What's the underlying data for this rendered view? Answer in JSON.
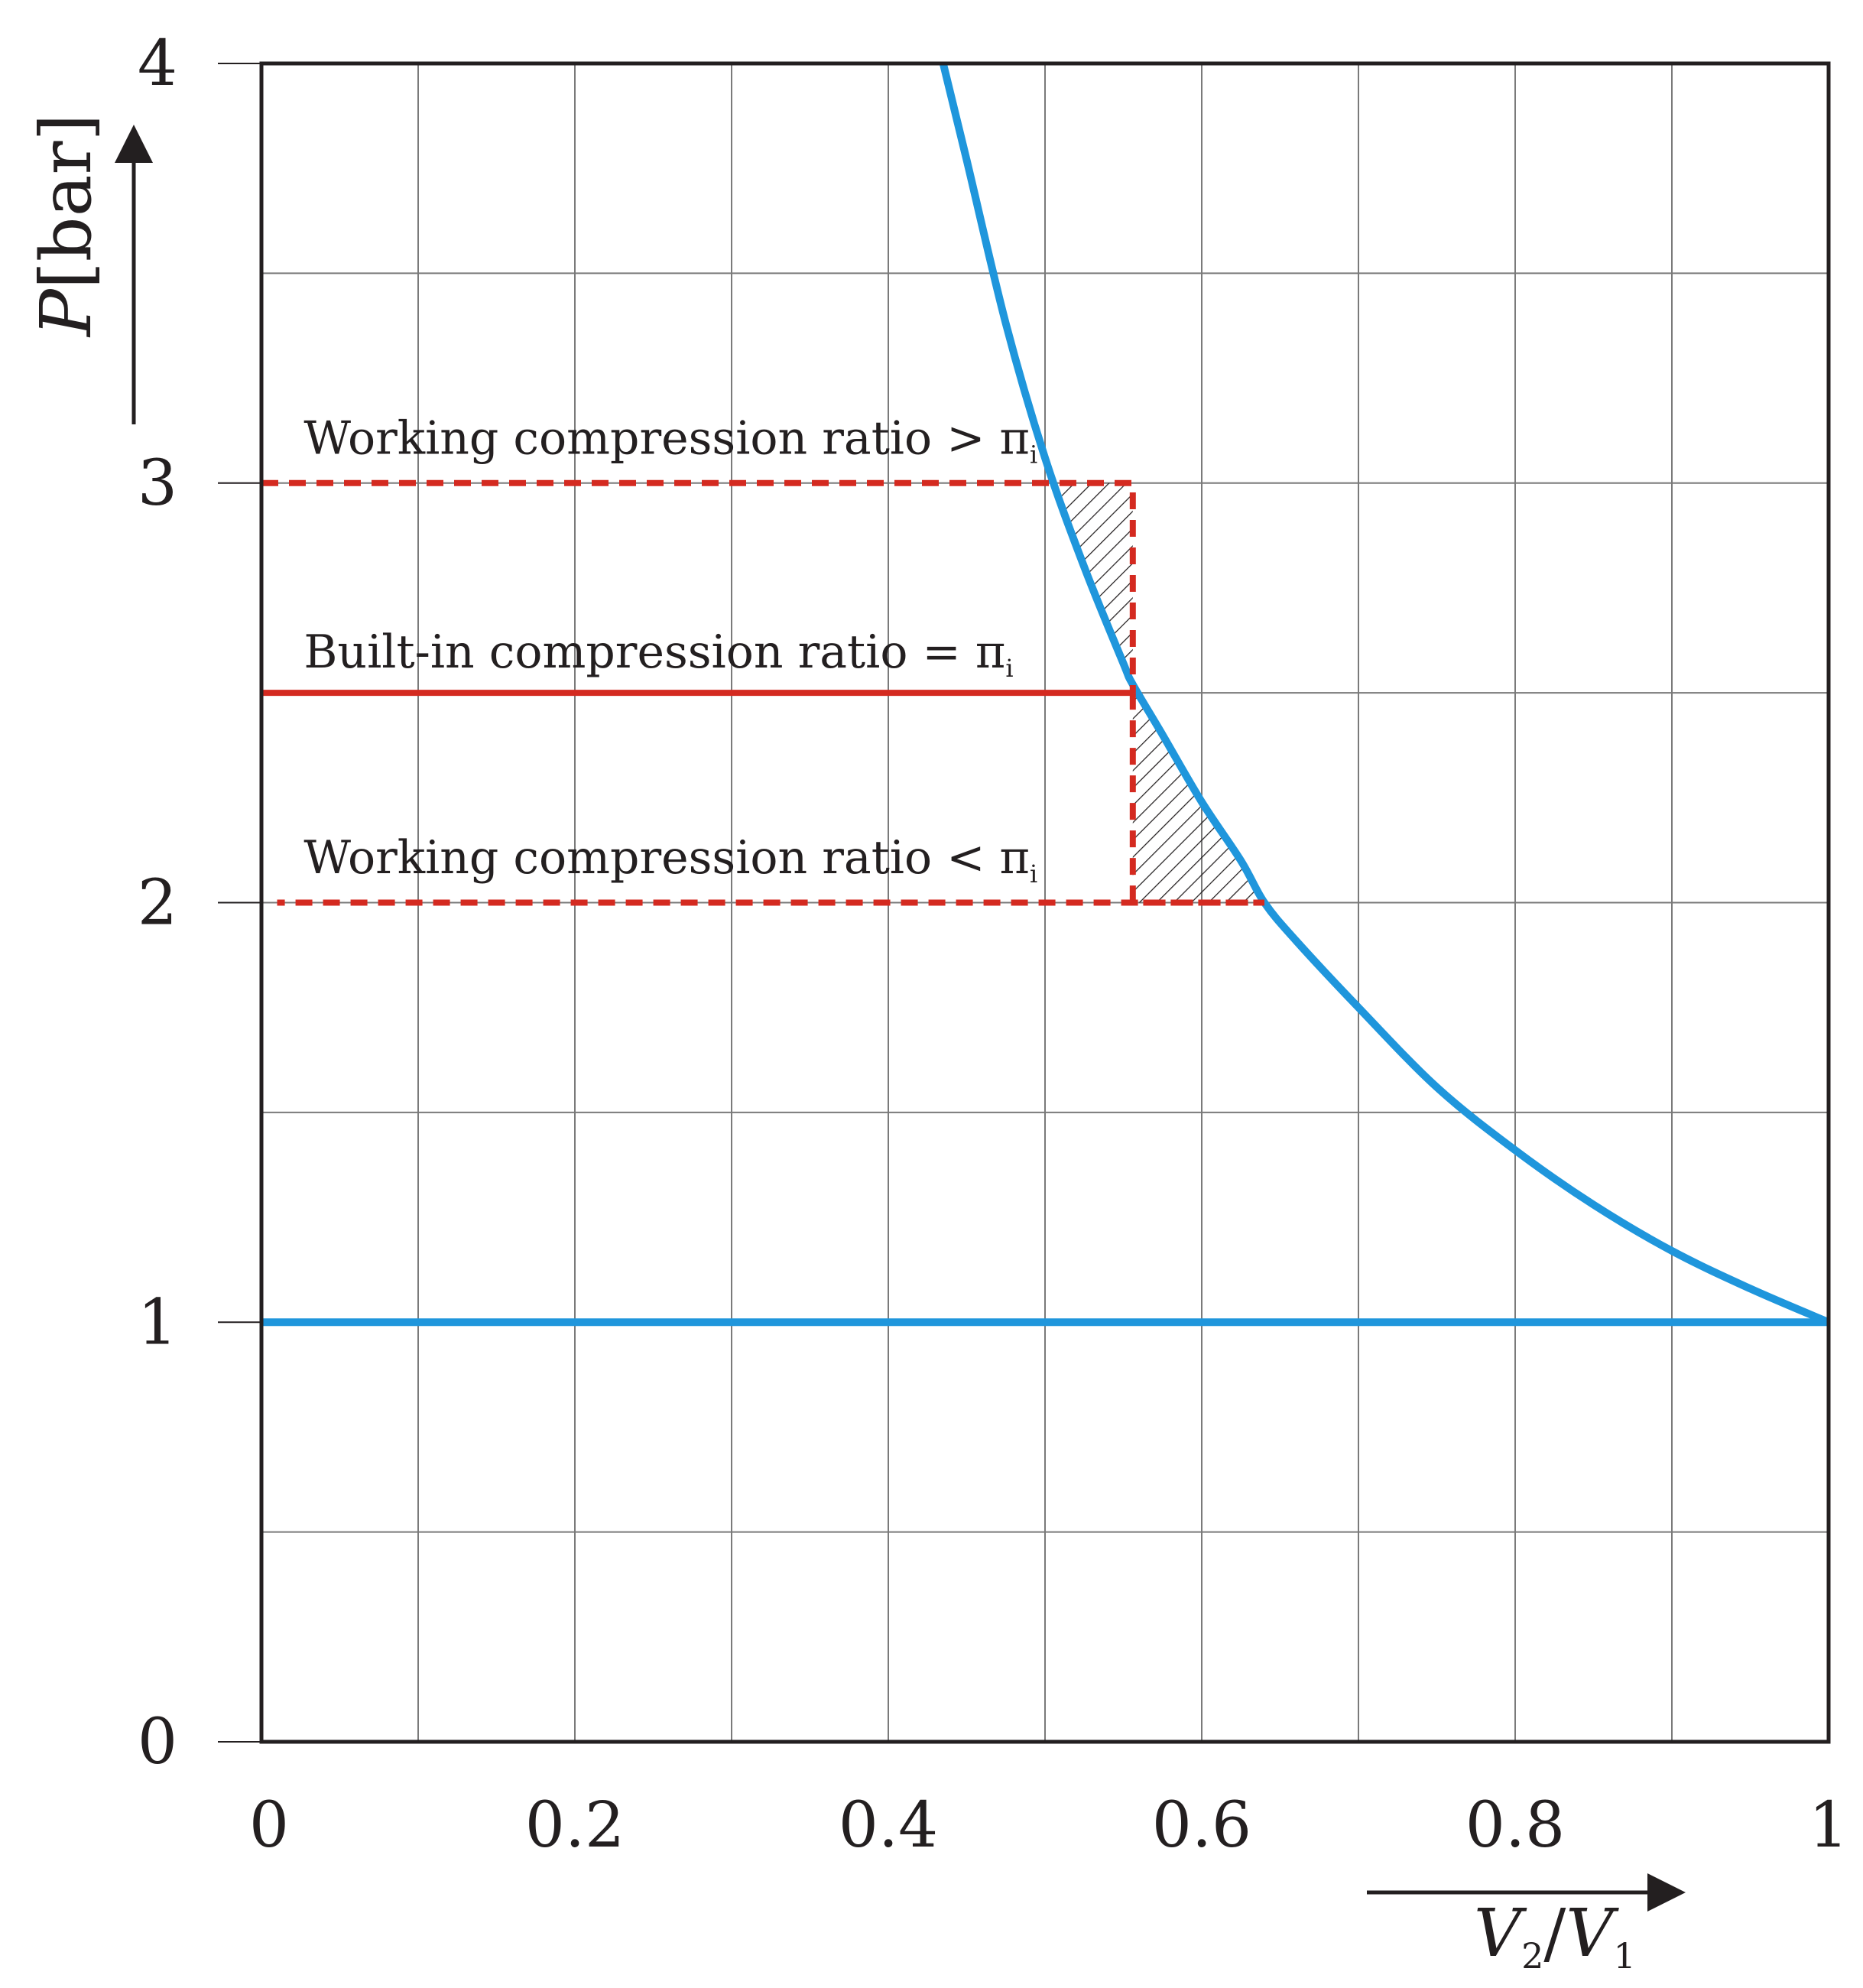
{
  "chart_data": {
    "type": "line",
    "xlabel": {
      "base1": "V",
      "sub1": "2",
      "slash": "/",
      "base2": "V",
      "sub2": "1"
    },
    "ylabel": {
      "var": "P",
      "unit": "[bar]"
    },
    "xlim": [
      0,
      1
    ],
    "ylim": [
      0,
      4
    ],
    "x_ticks": [
      0,
      0.2,
      0.4,
      0.6,
      0.8,
      1
    ],
    "x_tick_labels": [
      "0",
      "0.2",
      "0.4",
      "0.6",
      "0.8",
      "1"
    ],
    "y_ticks": [
      0,
      1,
      2,
      3,
      4
    ],
    "y_tick_labels": [
      "0",
      "1",
      "2",
      "3",
      "4"
    ],
    "grid": true,
    "grid_step_x": 0.1,
    "grid_step_y": 0.5,
    "series": [
      {
        "kind": "compression-curve",
        "color": "#1f96dc",
        "x": [
          0.435,
          0.45,
          0.475,
          0.5,
          0.525,
          0.55,
          0.556,
          0.575,
          0.6,
          0.625,
          0.64,
          0.66,
          0.7,
          0.75,
          0.8,
          0.85,
          0.9,
          0.95,
          1.0
        ],
        "y": [
          4.0,
          3.77,
          3.38,
          3.06,
          2.8,
          2.57,
          2.52,
          2.4,
          2.24,
          2.1,
          2.0,
          1.91,
          1.75,
          1.56,
          1.41,
          1.28,
          1.17,
          1.08,
          1.0
        ]
      },
      {
        "kind": "suction-line",
        "color": "#1f96dc",
        "x": [
          0,
          1
        ],
        "y": [
          1,
          1
        ]
      },
      {
        "kind": "built-in-ratio",
        "color": "#d42a20",
        "style": "solid",
        "x": [
          0,
          0.556
        ],
        "y": [
          2.5,
          2.5
        ]
      },
      {
        "kind": "over-compression",
        "color": "#d42a20",
        "style": "dashed",
        "x": [
          0,
          0.556,
          0.556
        ],
        "y": [
          3,
          3,
          2.5
        ]
      },
      {
        "kind": "under-compression",
        "color": "#d42a20",
        "style": "dashed",
        "x": [
          0.556,
          0.556,
          0.64,
          0.01
        ],
        "y": [
          2.5,
          2.0,
          2.0,
          2.0
        ]
      }
    ],
    "hatched_regions": [
      {
        "x": [
          0.505,
          0.556,
          0.556
        ],
        "y": [
          3.0,
          3.0,
          2.52
        ]
      },
      {
        "x": [
          0.556,
          0.556,
          0.64
        ],
        "y": [
          2.52,
          2.0,
          2.0
        ]
      }
    ],
    "annotations": [
      {
        "id": "over",
        "text": "Working compression ratio > π",
        "sub": "i",
        "x": 0.027,
        "y": 3.07
      },
      {
        "id": "builtin",
        "text": "Built-in compression ratio = π",
        "sub": "i",
        "x": 0.027,
        "y": 2.56
      },
      {
        "id": "under",
        "text": "Working compression ratio < π",
        "sub": "i",
        "x": 0.027,
        "y": 2.07
      }
    ]
  }
}
